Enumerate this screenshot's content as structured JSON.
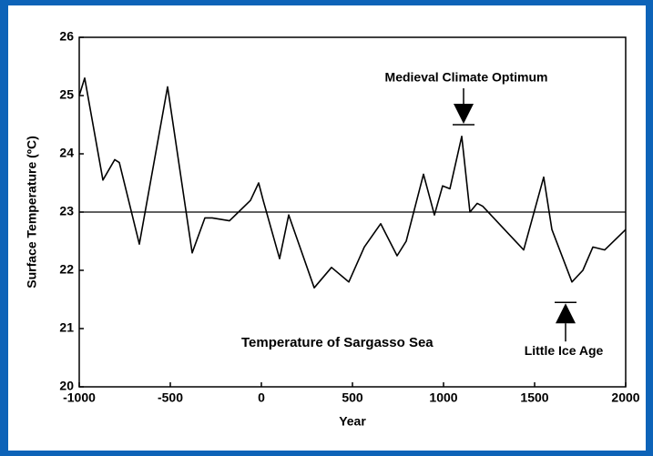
{
  "chart_data": {
    "type": "line",
    "title": "Temperature of Sargasso Sea",
    "x_label": "Year",
    "y_label": "Surface Temperature (ºC)",
    "x": [
      -1000,
      -970,
      -870,
      -805,
      -780,
      -670,
      -515,
      -380,
      -310,
      -270,
      -175,
      -60,
      -15,
      10,
      100,
      150,
      290,
      385,
      480,
      565,
      655,
      745,
      795,
      890,
      950,
      995,
      1035,
      1100,
      1145,
      1185,
      1215,
      1440,
      1550,
      1595,
      1705,
      1765,
      1820,
      1885,
      2000
    ],
    "series": [
      {
        "name": "Surface Temperature",
        "color": "#000000",
        "values": [
          25.0,
          25.3,
          23.55,
          23.9,
          23.85,
          22.45,
          25.15,
          22.3,
          22.9,
          22.9,
          22.85,
          23.2,
          23.5,
          23.2,
          22.2,
          22.95,
          21.7,
          22.05,
          21.8,
          22.4,
          22.8,
          22.25,
          22.5,
          23.65,
          22.95,
          23.45,
          23.4,
          24.3,
          23.0,
          23.15,
          23.1,
          22.35,
          23.6,
          22.7,
          21.8,
          22.0,
          22.4,
          22.35,
          22.7
        ]
      }
    ],
    "reference_line": 23,
    "annotations": [
      {
        "text": "Medieval Climate Optimum",
        "x": 1110,
        "y": 24.5
      },
      {
        "text": "Little Ice Age",
        "x": 1670,
        "y": 21.45
      }
    ],
    "xlim": [
      -1000,
      2000
    ],
    "xticks": [
      -1000,
      -500,
      0,
      500,
      1000,
      1500,
      2000
    ],
    "ylim": [
      20,
      26
    ],
    "yticks": [
      20,
      21,
      22,
      23,
      24,
      25,
      26
    ]
  }
}
